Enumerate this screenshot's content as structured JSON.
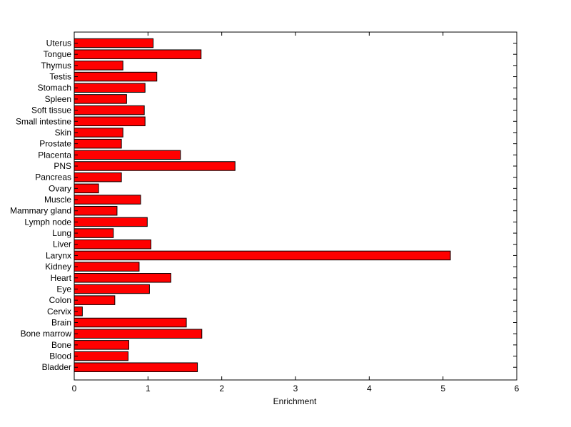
{
  "chart_data": {
    "type": "bar",
    "orientation": "horizontal",
    "title": "",
    "xlabel": "Enrichment",
    "ylabel": "",
    "xlim": [
      0,
      6
    ],
    "xticks": [
      "0",
      "1",
      "2",
      "3",
      "4",
      "5",
      "6"
    ],
    "grid": false,
    "bar_color": "#ff0000",
    "categories": [
      "Uterus",
      "Tongue",
      "Thymus",
      "Testis",
      "Stomach",
      "Spleen",
      "Soft tissue",
      "Small intestine",
      "Skin",
      "Prostate",
      "Placenta",
      "PNS",
      "Pancreas",
      "Ovary",
      "Muscle",
      "Mammary gland",
      "Lymph node",
      "Lung",
      "Liver",
      "Larynx",
      "Kidney",
      "Heart",
      "Eye",
      "Colon",
      "Cervix",
      "Brain",
      "Bone marrow",
      "Bone",
      "Blood",
      "Bladder"
    ],
    "values": [
      1.07,
      1.72,
      0.66,
      1.12,
      0.96,
      0.71,
      0.95,
      0.96,
      0.66,
      0.64,
      1.44,
      2.18,
      0.64,
      0.33,
      0.9,
      0.58,
      0.99,
      0.53,
      1.04,
      5.1,
      0.88,
      1.31,
      1.02,
      0.55,
      0.11,
      1.52,
      1.73,
      0.74,
      0.73,
      1.67
    ]
  }
}
